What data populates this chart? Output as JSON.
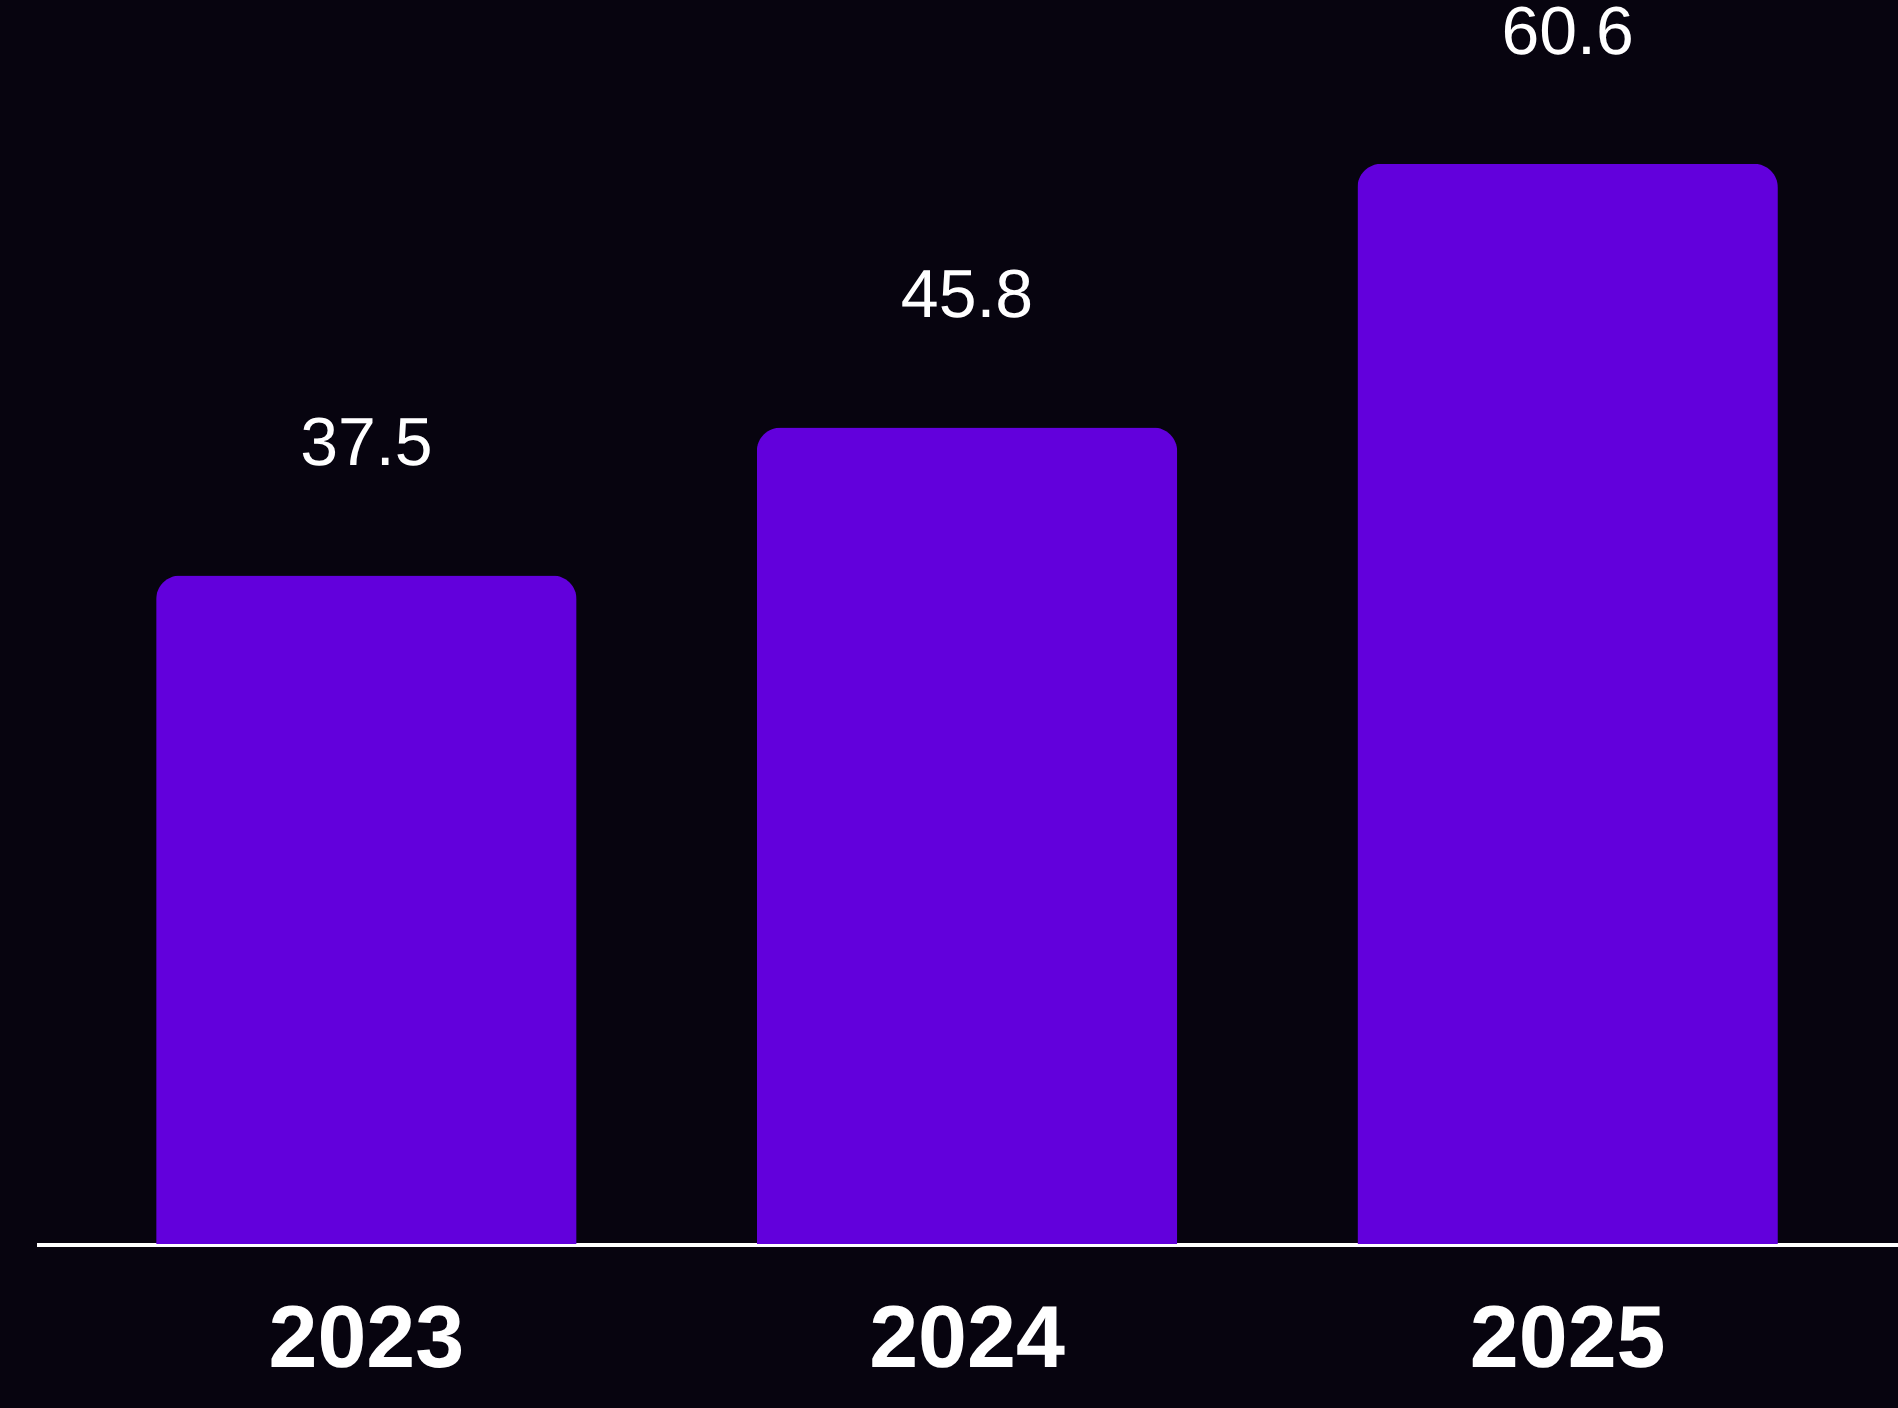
{
  "chart_data": {
    "type": "bar",
    "categories": [
      "2023",
      "2024",
      "2025"
    ],
    "values": [
      37.5,
      45.8,
      60.6
    ],
    "color": "#6200dc",
    "data_labels": true,
    "grid": false,
    "tick_labels": "x"
  }
}
